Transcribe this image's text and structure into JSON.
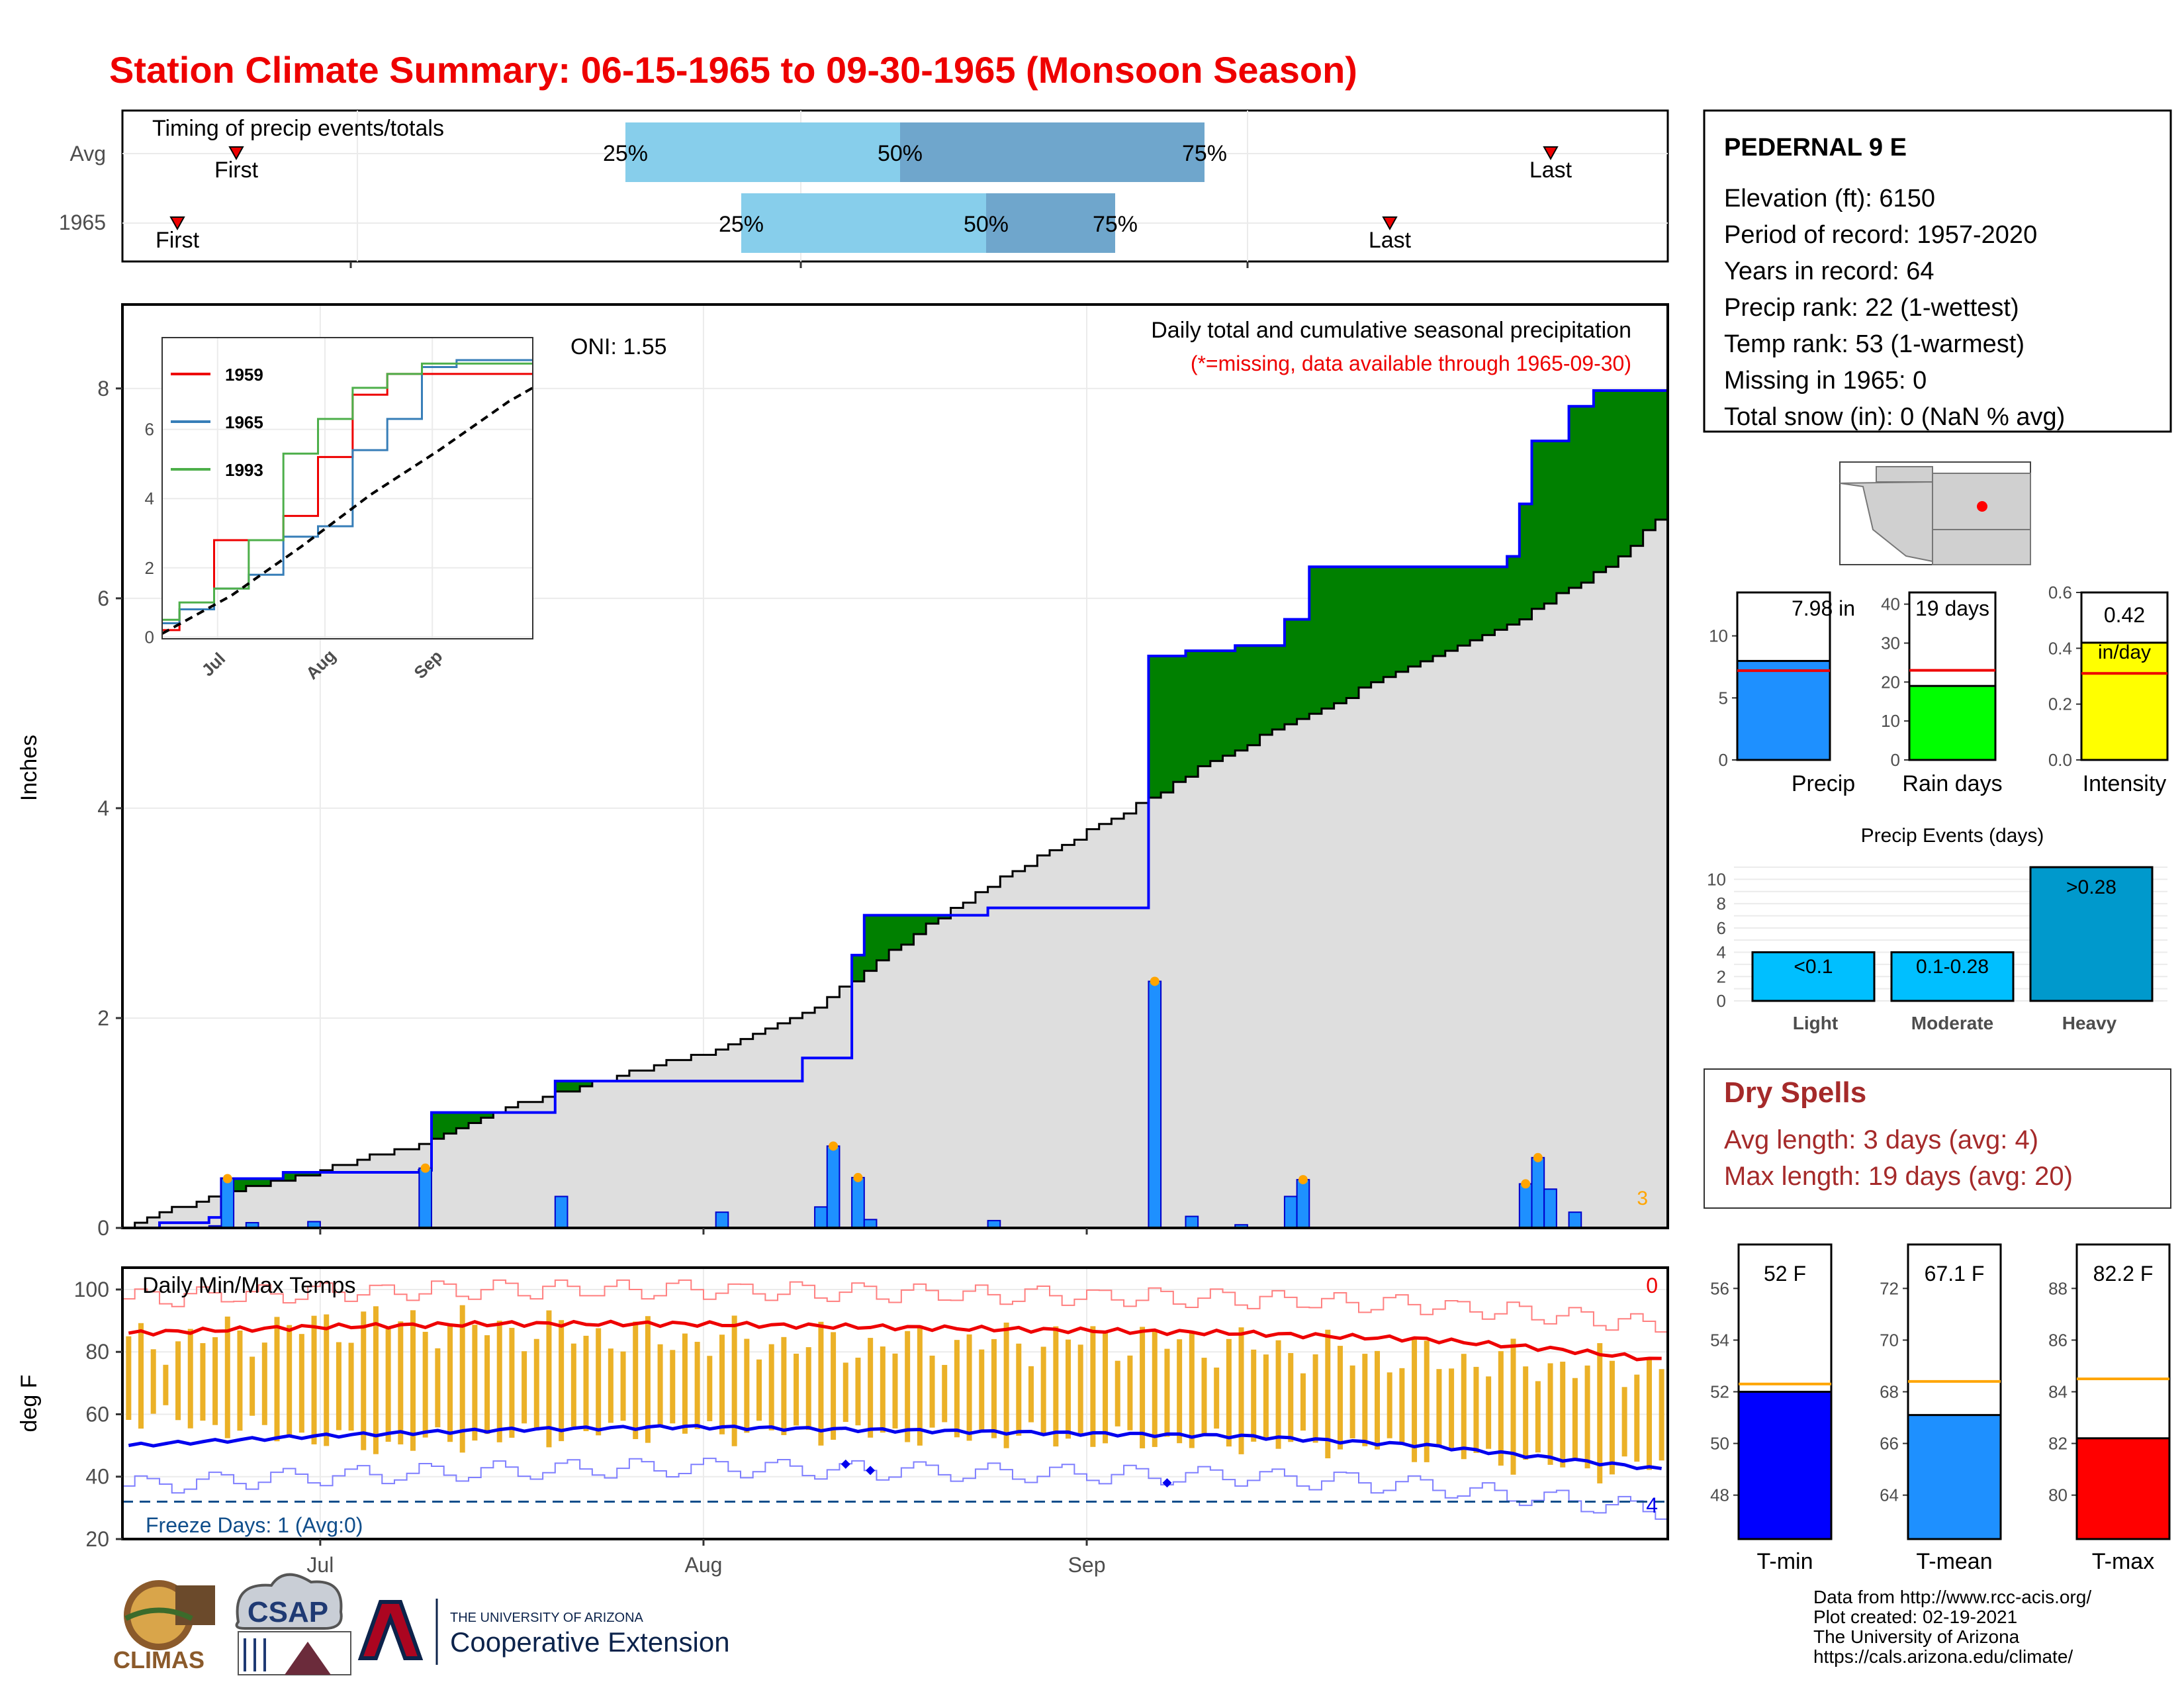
{
  "title": "Station Climate Summary: 06-15-1965 to 09-30-1965 (Monsoon Season)",
  "colors": {
    "title": "#ee0000",
    "above_avg": "#008000",
    "below_avg": "#8b5a00",
    "cum_gray": "#dedede",
    "daily_bar": "#1e90ff",
    "avg_light": "#87ceeb",
    "avg_dark": "#6fa6cc",
    "tmin": "#0000ff",
    "tmax": "#ff0000",
    "temp_bar": "#ebb127",
    "tmean_bar": "#1e90ff",
    "intensity": "#ffff00",
    "raindays": "#00ff00",
    "dry_spells": "#a52a2a"
  },
  "timing": {
    "label": "Timing of precip events/totals",
    "rows": [
      {
        "name": "Avg",
        "first": "First",
        "last": "Last",
        "p25": "25%",
        "p50": "50%",
        "p75": "75%"
      },
      {
        "name": "1965",
        "first": "First",
        "last": "Last",
        "p25": "25%",
        "p50": "50%",
        "p75": "75%"
      }
    ]
  },
  "station": {
    "name": "PEDERNAL 9 E",
    "lines": [
      "Elevation (ft): 6150",
      "Period of record: 1957-2020",
      "Years in record: 64",
      "Precip rank: 22 (1-wettest)",
      "Temp rank: 53 (1-warmest)",
      "Missing in 1965: 0",
      "Total snow (in): 0 (NaN % avg)"
    ]
  },
  "main_panel": {
    "ylabel": "Inches",
    "oni": "ONI: 1.55",
    "note1": "Daily total and cumulative seasonal precipitation",
    "note2": "(*=missing, data available through 1965-09-30)",
    "corner_count": "3",
    "y_ticks": [
      "0",
      "2",
      "4",
      "6",
      "8"
    ],
    "x_ticks": [
      "Jul",
      "Aug",
      "Sep"
    ]
  },
  "inset": {
    "legend": [
      "1959",
      "1965",
      "1993"
    ],
    "y_ticks": [
      "0",
      "2",
      "4",
      "6"
    ],
    "x_ticks": [
      "Jul",
      "Aug",
      "Sep"
    ]
  },
  "summary_bars": [
    {
      "name": "Precip",
      "value_label": "7.98 in",
      "ticks": [
        "0",
        "5",
        "10"
      ]
    },
    {
      "name": "Rain days",
      "value_label": "19 days",
      "ticks": [
        "0",
        "10",
        "20",
        "30",
        "40"
      ]
    },
    {
      "name": "Intensity",
      "value_label": "0.42",
      "value_label2": "in/day",
      "ticks": [
        "0.0",
        "0.2",
        "0.4",
        "0.6"
      ]
    }
  ],
  "events": {
    "title": "Precip Events (days)",
    "ticks": [
      "0",
      "2",
      "4",
      "6",
      "8",
      "10"
    ],
    "bars": [
      {
        "name": "Light",
        "label": "<0.1"
      },
      {
        "name": "Moderate",
        "label": "0.1-0.28"
      },
      {
        "name": "Heavy",
        "label": ">0.28"
      }
    ]
  },
  "dry_spells": {
    "title": "Dry Spells",
    "line1": "Avg length: 3 days (avg: 4)",
    "line2": "Max length: 19 days (avg: 20)"
  },
  "temp_panel": {
    "title": "Daily Min/Max Temps",
    "ylabel": "deg F",
    "freeze": "Freeze Days: 1 (Avg:0)",
    "count_top": "0",
    "count_bottom": "4",
    "y_ticks": [
      "20",
      "40",
      "60",
      "80",
      "100"
    ],
    "x_ticks": [
      "Jul",
      "Aug",
      "Sep"
    ]
  },
  "temp_bars": [
    {
      "name": "T-min",
      "value_label": "52 F",
      "ticks": [
        "48",
        "50",
        "52",
        "54",
        "56"
      ]
    },
    {
      "name": "T-mean",
      "value_label": "67.1 F",
      "ticks": [
        "64",
        "66",
        "68",
        "70",
        "72"
      ]
    },
    {
      "name": "T-max",
      "value_label": "82.2 F",
      "ticks": [
        "80",
        "82",
        "84",
        "86",
        "88"
      ]
    }
  ],
  "footer": {
    "lines": [
      "Data from http://www.rcc-acis.org/",
      "Plot created: 02-19-2021",
      "The University of Arizona",
      "https://cals.arizona.edu/climate/"
    ],
    "logos": {
      "climas": "CLIMAS",
      "csap": "CSAP",
      "ua_small": "THE UNIVERSITY OF ARIZONA",
      "ua_big": "Cooperative Extension"
    }
  },
  "chart_data": [
    {
      "type": "area",
      "title": "Daily total and cumulative seasonal precipitation",
      "ylabel": "Inches",
      "ylim": [
        0,
        8.8
      ],
      "series": [
        {
          "name": "1965",
          "step_points": [
            [
              0,
              0
            ],
            [
              3,
              0.05
            ],
            [
              7,
              0.1
            ],
            [
              8,
              0.47
            ],
            [
              9,
              0.47
            ],
            [
              13,
              0.53
            ],
            [
              18,
              0.53
            ],
            [
              24,
              0.55
            ],
            [
              25,
              1.1
            ],
            [
              34,
              1.1
            ],
            [
              35,
              1.4
            ],
            [
              50,
              1.4
            ],
            [
              55,
              1.62
            ],
            [
              57,
              1.62
            ],
            [
              59,
              2.6
            ],
            [
              60,
              2.98
            ],
            [
              70,
              3.05
            ],
            [
              82,
              3.05
            ],
            [
              83,
              5.45
            ],
            [
              86,
              5.5
            ],
            [
              90,
              5.55
            ],
            [
              94,
              5.8
            ],
            [
              96,
              6.3
            ],
            [
              101,
              6.3
            ],
            [
              105,
              6.3
            ],
            [
              110,
              6.3
            ],
            [
              112,
              6.4
            ],
            [
              113,
              6.9
            ],
            [
              114,
              7.5
            ],
            [
              117,
              7.83
            ],
            [
              119,
              7.98
            ],
            [
              125,
              7.98
            ]
          ]
        },
        {
          "name": "Average",
          "x": [
            0,
            8,
            16,
            24,
            32,
            40,
            48,
            56,
            64,
            72,
            80,
            83,
            88,
            96,
            104,
            112,
            120,
            125
          ],
          "values": [
            0.02,
            0.33,
            0.55,
            0.8,
            1.18,
            1.45,
            1.7,
            2.1,
            2.8,
            3.4,
            3.9,
            4.1,
            4.45,
            4.9,
            5.35,
            5.75,
            6.3,
            6.85
          ]
        }
      ],
      "daily_totals": {
        "x": [
          7,
          8,
          10,
          15,
          24,
          35,
          48,
          56,
          57,
          59,
          60,
          70,
          83,
          86,
          90,
          94,
          95,
          113,
          114,
          115,
          117
        ],
        "values": [
          0.02,
          0.47,
          0.05,
          0.06,
          0.57,
          0.3,
          0.15,
          0.2,
          0.78,
          0.48,
          0.08,
          0.07,
          2.35,
          0.11,
          0.03,
          0.3,
          0.46,
          0.42,
          0.67,
          0.37,
          0.15
        ]
      }
    },
    {
      "type": "line",
      "title": "inset cumulative precipitation",
      "ylim": [
        0,
        8
      ],
      "series": [
        {
          "name": "1959",
          "x": [
            0,
            10,
            20,
            30,
            40,
            50,
            60,
            70,
            80,
            90,
            100,
            107
          ],
          "values": [
            0.2,
            0.8,
            2.8,
            2.8,
            3.5,
            5.2,
            7.0,
            7.6,
            7.6,
            7.6,
            7.6,
            7.6
          ]
        },
        {
          "name": "1965",
          "x": [
            0,
            10,
            20,
            30,
            40,
            50,
            60,
            70,
            80,
            90,
            100,
            107
          ],
          "values": [
            0.4,
            0.8,
            1.4,
            1.8,
            2.9,
            3.2,
            5.4,
            6.3,
            7.8,
            8.0,
            8.0,
            8.0
          ]
        },
        {
          "name": "1993",
          "x": [
            0,
            10,
            20,
            30,
            40,
            50,
            60,
            70,
            80,
            90,
            100,
            107
          ],
          "values": [
            0.5,
            1.0,
            1.4,
            2.8,
            5.3,
            6.3,
            7.2,
            7.6,
            7.9,
            7.9,
            7.9,
            7.9
          ]
        },
        {
          "name": "avg",
          "x": [
            0,
            20,
            40,
            60,
            80,
            100,
            107
          ],
          "values": [
            0.1,
            1.2,
            2.6,
            4.1,
            5.4,
            6.8,
            7.2
          ]
        }
      ]
    },
    {
      "type": "bar",
      "title": "summary",
      "categories": [
        "Precip",
        "Rain days",
        "Intensity"
      ],
      "values": [
        7.98,
        19,
        0.42
      ],
      "averages": [
        7.2,
        23,
        0.31
      ],
      "ylim": [
        [
          0,
          13.5
        ],
        [
          0,
          43
        ],
        [
          0,
          0.6
        ]
      ]
    },
    {
      "type": "bar",
      "title": "Precip Events (days)",
      "categories": [
        "Light",
        "Moderate",
        "Heavy"
      ],
      "values": [
        4,
        4,
        11
      ],
      "ylim": [
        0,
        11
      ]
    },
    {
      "type": "line",
      "title": "Daily Min/Max Temps",
      "ylabel": "deg F",
      "ylim": [
        20,
        107
      ],
      "series": [
        {
          "name": "avg max",
          "x": [
            0,
            15,
            30,
            45,
            60,
            75,
            90,
            105,
            115,
            125
          ],
          "values": [
            86,
            88,
            89,
            89,
            88,
            87,
            86,
            84,
            81,
            77
          ]
        },
        {
          "name": "avg min",
          "x": [
            0,
            15,
            30,
            45,
            60,
            75,
            90,
            105,
            115,
            125
          ],
          "values": [
            50,
            53,
            55,
            56,
            55,
            54,
            53,
            50,
            46,
            42
          ]
        },
        {
          "name": "daily max",
          "x": [
            0,
            20,
            40,
            60,
            80,
            100,
            120,
            125
          ],
          "values": [
            82,
            90,
            85,
            82,
            84,
            79,
            75,
            76
          ]
        },
        {
          "name": "daily min",
          "x": [
            0,
            20,
            40,
            60,
            80,
            100,
            120,
            125
          ],
          "values": [
            60,
            50,
            55,
            54,
            52,
            50,
            42,
            45
          ]
        }
      ],
      "freeze_line": 32
    },
    {
      "type": "bar",
      "title": "temperature summary",
      "categories": [
        "T-min",
        "T-mean",
        "T-max"
      ],
      "values": [
        52,
        67.1,
        82.2
      ],
      "averages": [
        52.3,
        68.4,
        84.5
      ]
    }
  ]
}
